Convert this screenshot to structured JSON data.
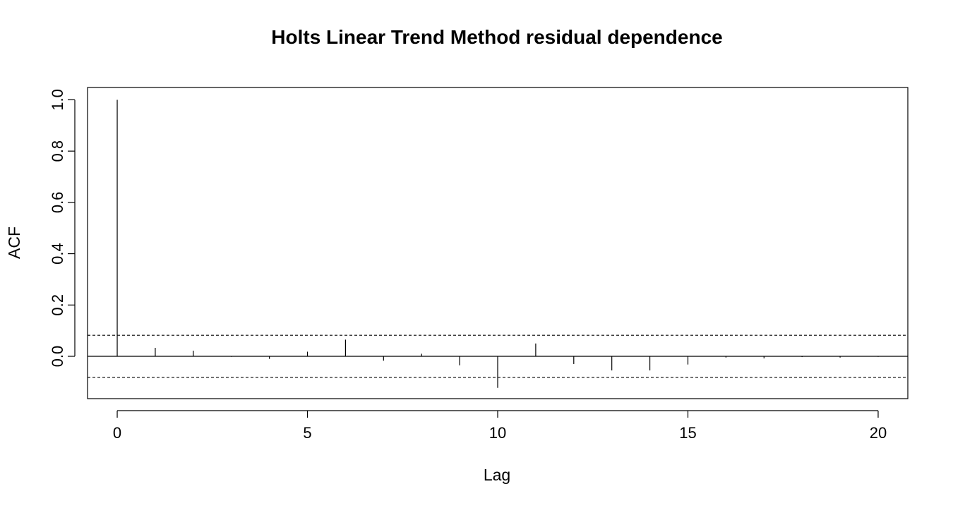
{
  "chart_data": {
    "type": "bar",
    "title": "Holts Linear Trend Method residual dependence",
    "xlabel": "Lag",
    "ylabel": "ACF",
    "x": [
      0,
      1,
      2,
      3,
      4,
      5,
      6,
      7,
      8,
      9,
      10,
      11,
      12,
      13,
      14,
      15,
      16,
      17,
      18,
      19,
      20
    ],
    "values": [
      1.0,
      0.033,
      0.022,
      -0.002,
      -0.01,
      0.018,
      0.065,
      -0.017,
      0.01,
      -0.035,
      -0.123,
      0.05,
      -0.03,
      -0.055,
      -0.055,
      -0.032,
      -0.005,
      -0.008,
      -0.003,
      -0.005,
      -0.002
    ],
    "ci_upper": 0.082,
    "ci_lower": -0.082,
    "xlim": [
      -0.78,
      20.78
    ],
    "ylim": [
      -0.165,
      1.048
    ],
    "x_ticks": [
      0,
      5,
      10,
      15,
      20
    ],
    "x_tick_labels": [
      "0",
      "5",
      "10",
      "15",
      "20"
    ],
    "y_ticks": [
      0.0,
      0.2,
      0.4,
      0.6,
      0.8,
      1.0
    ],
    "y_tick_labels": [
      "0.0",
      "0.2",
      "0.4",
      "0.6",
      "0.8",
      "1.0"
    ],
    "grid": false,
    "legend": "none"
  }
}
